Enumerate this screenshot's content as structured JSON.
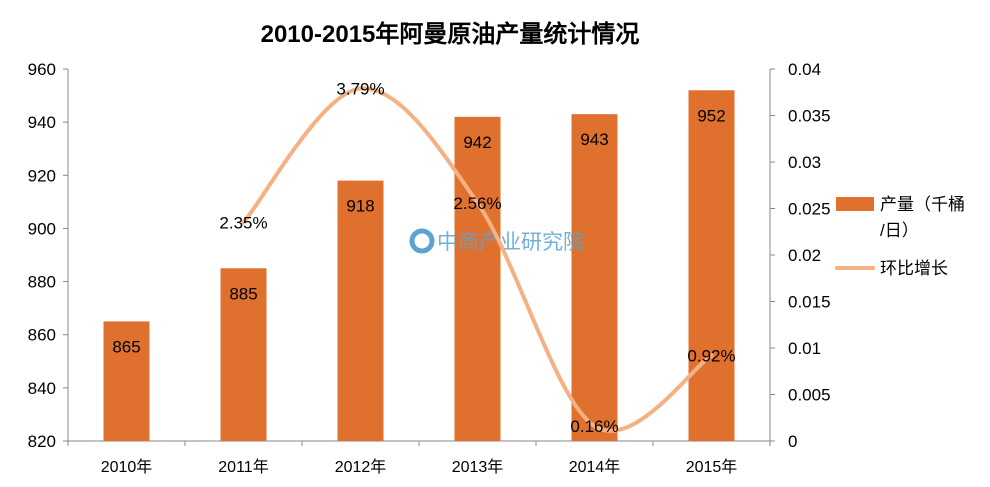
{
  "chart_data": {
    "type": "bar+line",
    "title": "2010-2015年阿曼原油产量统计情况",
    "categories": [
      "2010年",
      "2011年",
      "2012年",
      "2013年",
      "2014年",
      "2015年"
    ],
    "series": [
      {
        "name": "产量（千桶/日）",
        "type": "bar",
        "axis": "left",
        "values": [
          865,
          885,
          918,
          942,
          943,
          952
        ],
        "labels": [
          "865",
          "885",
          "918",
          "942",
          "943",
          "952"
        ],
        "color": "#E0702E"
      },
      {
        "name": "环比增长",
        "type": "line",
        "axis": "right",
        "smooth": true,
        "values": [
          null,
          0.0235,
          0.0379,
          0.0256,
          0.0016,
          0.0092
        ],
        "labels": [
          "",
          "2.35%",
          "3.79%",
          "2.56%",
          "0.16%",
          "0.92%"
        ],
        "color": "#F4B183"
      }
    ],
    "y_left": {
      "ylim": [
        820,
        960
      ],
      "ticks": [
        "820",
        "840",
        "860",
        "880",
        "900",
        "920",
        "940",
        "960"
      ]
    },
    "y_right": {
      "ylim": [
        0,
        0.04
      ],
      "ticks": [
        "0",
        "0.005",
        "0.01",
        "0.015",
        "0.02",
        "0.025",
        "0.03",
        "0.035",
        "0.04"
      ]
    },
    "grid": false,
    "legend": {
      "placement": "right",
      "entries": [
        "产量（千桶/日）",
        "环比增长"
      ],
      "bar_label_lines": [
        "产量（千桶",
        "/日）"
      ]
    },
    "watermark": "中商产业研究院"
  }
}
